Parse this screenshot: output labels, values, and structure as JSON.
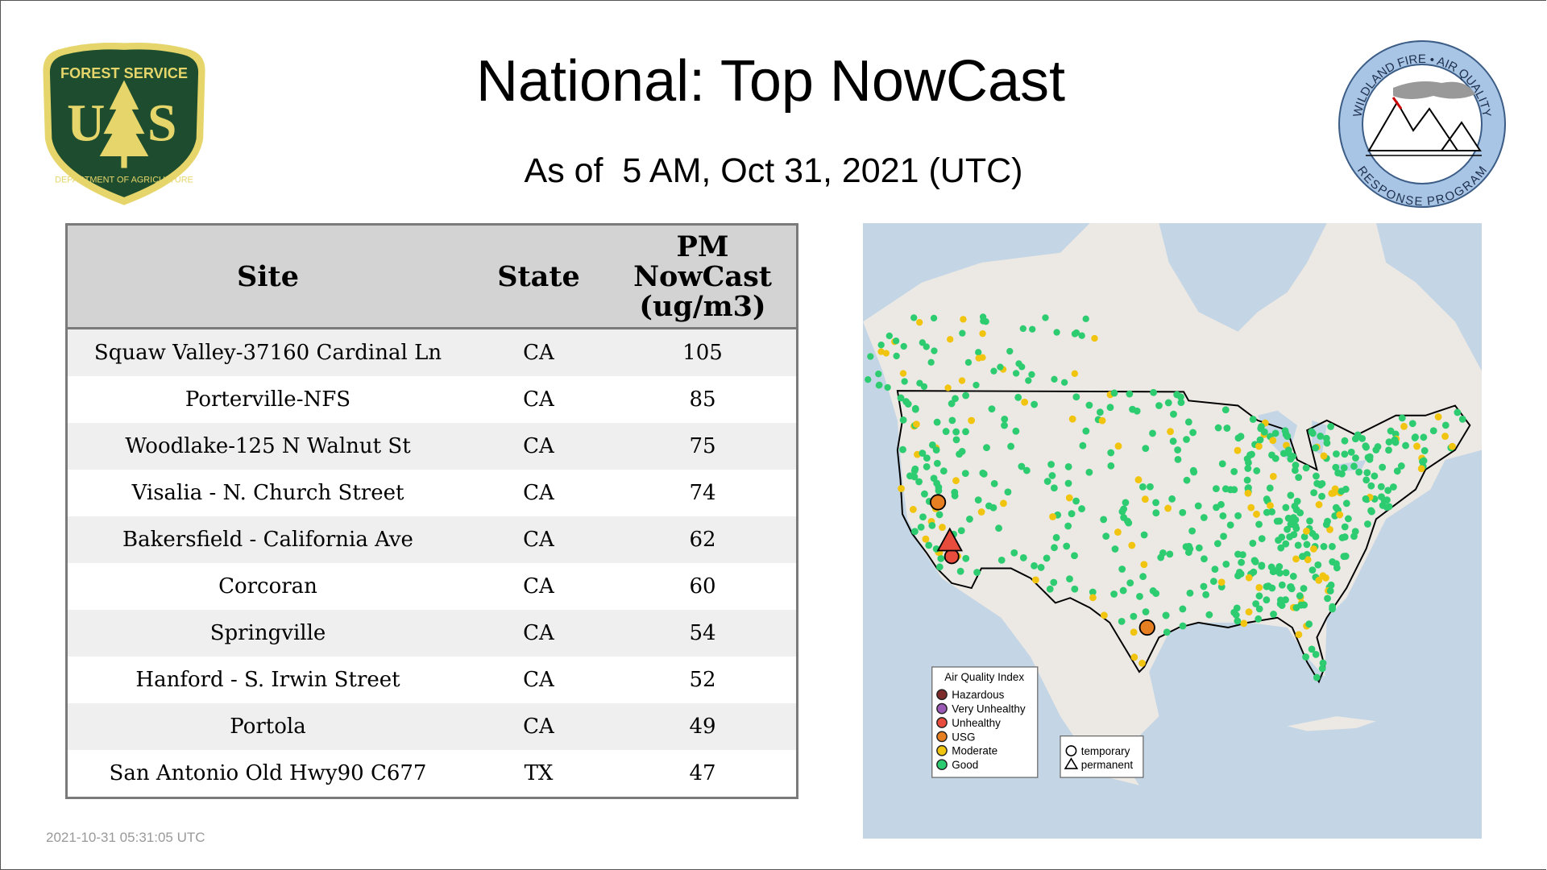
{
  "header": {
    "title": "National: Top NowCast",
    "subtitle": "As of  5 AM, Oct 31, 2021 (UTC)"
  },
  "logos": {
    "left": {
      "top_text": "FOREST SERVICE",
      "letters": "U S",
      "bottom_text": "DEPARTMENT OF AGRICULTURE"
    },
    "right": {
      "top_text": "WILDLAND FIRE • AIR QUALITY",
      "bottom_text": "RESPONSE PROGRAM"
    }
  },
  "table": {
    "columns": [
      "Site",
      "State",
      "PM NowCast (ug/m3)"
    ],
    "value_header_lines": [
      "PM",
      "NowCast",
      "(ug/m3)"
    ],
    "rows": [
      {
        "site": "Squaw Valley-37160 Cardinal Ln",
        "state": "CA",
        "value": "105"
      },
      {
        "site": "Porterville-NFS",
        "state": "CA",
        "value": "85"
      },
      {
        "site": "Woodlake-125 N Walnut St",
        "state": "CA",
        "value": "75"
      },
      {
        "site": "Visalia - N. Church Street",
        "state": "CA",
        "value": "74"
      },
      {
        "site": "Bakersfield - California Ave",
        "state": "CA",
        "value": "62"
      },
      {
        "site": "Corcoran",
        "state": "CA",
        "value": "60"
      },
      {
        "site": "Springville",
        "state": "CA",
        "value": "54"
      },
      {
        "site": "Hanford - S. Irwin Street",
        "state": "CA",
        "value": "52"
      },
      {
        "site": "Portola",
        "state": "CA",
        "value": "49"
      },
      {
        "site": "San Antonio Old Hwy90 C677",
        "state": "TX",
        "value": "47"
      }
    ]
  },
  "map": {
    "legend_title": "Air Quality Index",
    "categories": [
      {
        "label": "Hazardous",
        "color": "#7e2b2b"
      },
      {
        "label": "Very Unhealthy",
        "color": "#9b59b6"
      },
      {
        "label": "Unhealthy",
        "color": "#e74c3c"
      },
      {
        "label": "USG",
        "color": "#e67e22"
      },
      {
        "label": "Moderate",
        "color": "#f1c40f"
      },
      {
        "label": "Good",
        "color": "#2ecc71"
      }
    ],
    "shape_legend": [
      {
        "label": "temporary",
        "shape": "circle"
      },
      {
        "label": "permanent",
        "shape": "triangle"
      }
    ],
    "colors": {
      "water": "#c4d6e6",
      "land": "#ece8e3",
      "border": "#000000"
    }
  },
  "footer": {
    "timestamp": "2021-10-31 05:31:05 UTC"
  }
}
